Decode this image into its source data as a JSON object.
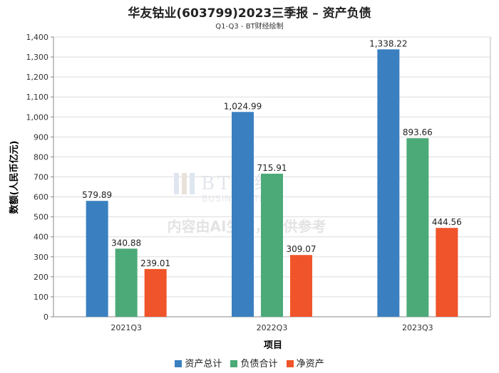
{
  "chart_data": {
    "type": "bar",
    "title": "华友钴业(603799)2023三季报 – 资产负债",
    "subtitle": "Q1-Q3 - BT财经绘制",
    "xlabel": "项目",
    "ylabel": "数额(人民币亿元)",
    "ylim": [
      0,
      1400
    ],
    "yticks": [
      0,
      100,
      200,
      300,
      400,
      500,
      600,
      700,
      800,
      900,
      1000,
      1100,
      1200,
      1300,
      1400
    ],
    "ytick_labels": [
      "0",
      "100",
      "200",
      "300",
      "400",
      "500",
      "600",
      "700",
      "800",
      "900",
      "1,000",
      "1,100",
      "1,200",
      "1,300",
      "1,400"
    ],
    "grid": true,
    "legend_position": "bottom",
    "categories": [
      "2021Q3",
      "2022Q3",
      "2023Q3"
    ],
    "series": [
      {
        "name": "资产总计",
        "color": "#3a80c0",
        "values": [
          579.89,
          1024.99,
          1338.22
        ],
        "labels": [
          "579.89",
          "1,024.99",
          "1,338.22"
        ]
      },
      {
        "name": "负债合计",
        "color": "#4caa78",
        "values": [
          340.88,
          715.91,
          893.66
        ],
        "labels": [
          "340.88",
          "715.91",
          "893.66"
        ]
      },
      {
        "name": "净资产",
        "color": "#f0542a",
        "values": [
          239.01,
          309.07,
          444.56
        ],
        "labels": [
          "239.01",
          "309.07",
          "444.56"
        ]
      }
    ]
  },
  "watermark": {
    "logo_text": "BT财经",
    "logo_subtext": "BUSINESS TIMES",
    "notice": "内容由AI生成，仅供参考"
  }
}
